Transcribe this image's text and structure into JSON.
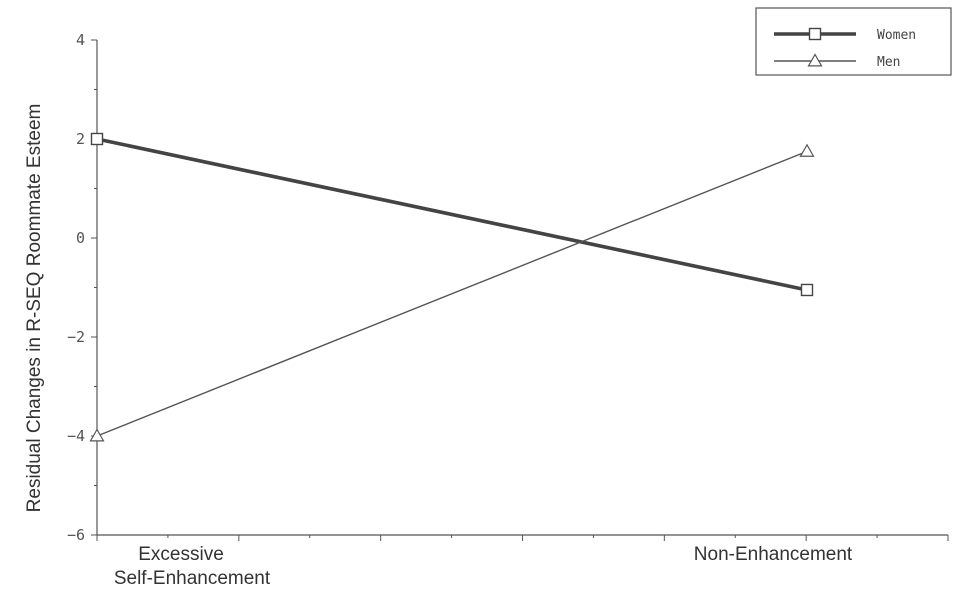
{
  "chart_data": {
    "type": "line",
    "categories": [
      "Excessive\nSelf-Enhancement",
      "Non-Enhancement"
    ],
    "series": [
      {
        "name": "Women",
        "values": [
          2.0,
          -1.05
        ],
        "marker": "square",
        "color": "#444444",
        "line_weight": "heavy"
      },
      {
        "name": "Men",
        "values": [
          -4.0,
          1.75
        ],
        "marker": "triangle",
        "color": "#555555",
        "line_weight": "light"
      }
    ],
    "ylabel": "Residual Changes in R-SEQ Roommate Esteem",
    "xlabel": "",
    "ylim": [
      -6,
      4
    ],
    "yticks": [
      "4",
      "2",
      "0",
      "-2",
      "-4",
      "-6"
    ],
    "grid": false,
    "legend_position": "top-right"
  }
}
